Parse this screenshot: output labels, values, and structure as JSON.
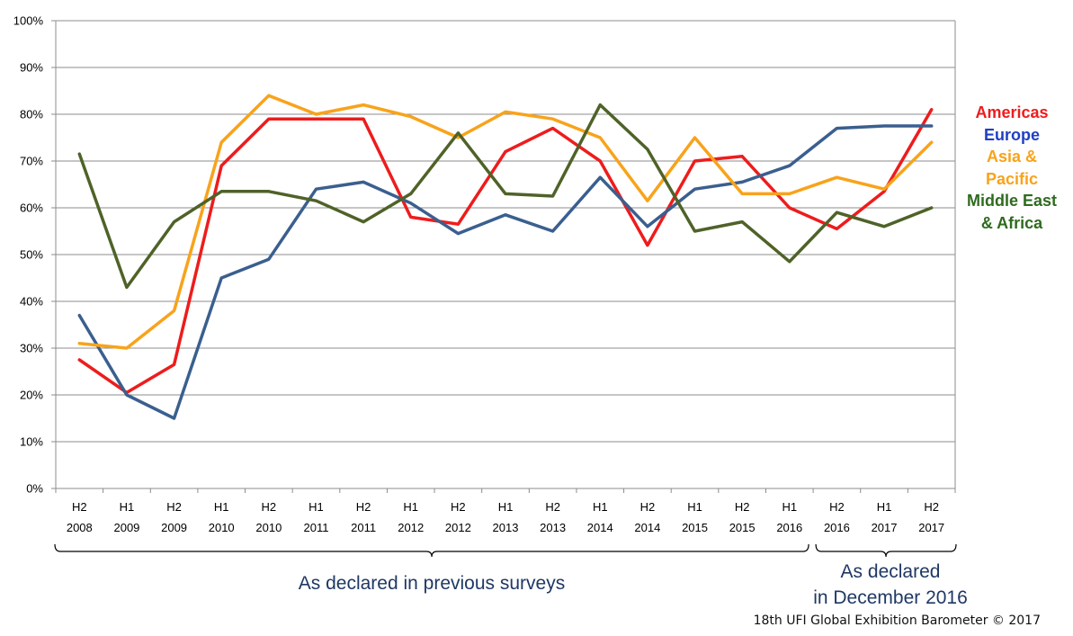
{
  "chart_data": {
    "type": "line",
    "categories": [
      [
        "H2",
        "2008"
      ],
      [
        "H1",
        "2009"
      ],
      [
        "H2",
        "2009"
      ],
      [
        "H1",
        "2010"
      ],
      [
        "H2",
        "2010"
      ],
      [
        "H1",
        "2011"
      ],
      [
        "H2",
        "2011"
      ],
      [
        "H1",
        "2012"
      ],
      [
        "H2",
        "2012"
      ],
      [
        "H1",
        "2013"
      ],
      [
        "H2",
        "2013"
      ],
      [
        "H1",
        "2014"
      ],
      [
        "H2",
        "2014"
      ],
      [
        "H1",
        "2015"
      ],
      [
        "H2",
        "2015"
      ],
      [
        "H1",
        "2016"
      ],
      [
        "H2",
        "2016"
      ],
      [
        "H1",
        "2017"
      ],
      [
        "H2",
        "2017"
      ]
    ],
    "ylim": [
      0,
      100
    ],
    "yticks": [
      "0%",
      "10%",
      "20%",
      "30%",
      "40%",
      "50%",
      "60%",
      "70%",
      "80%",
      "90%",
      "100%"
    ],
    "grid": true,
    "legend_position": "right",
    "series": [
      {
        "name": "Americas",
        "color": "#ee1c1c",
        "values": [
          27.5,
          20.5,
          26.5,
          69,
          79,
          79,
          79,
          58,
          56.5,
          72,
          77,
          70,
          52,
          70,
          71,
          60,
          55.5,
          63.5,
          81
        ]
      },
      {
        "name": "Europe",
        "color": "#3a5f8f",
        "values": [
          37,
          20,
          15,
          45,
          49,
          64,
          65.5,
          61,
          54.5,
          58.5,
          55,
          66.5,
          56,
          64,
          65.5,
          69,
          77,
          77.5,
          77.5
        ]
      },
      {
        "name": "Asia & Pacific",
        "color": "#f8a31b",
        "values": [
          31,
          30,
          38,
          74,
          84,
          80,
          82,
          79.5,
          75,
          80.5,
          79,
          75,
          61.5,
          75,
          63,
          63,
          66.5,
          64,
          74
        ]
      },
      {
        "name": "Middle East & Africa",
        "color": "#4f6228",
        "values": [
          71.5,
          43,
          57,
          63.5,
          63.5,
          61.5,
          57,
          63,
          76,
          63,
          62.5,
          82,
          72.5,
          55,
          57,
          48.5,
          59,
          56,
          60
        ]
      }
    ],
    "groups": [
      {
        "label": "As declared in previous surveys",
        "range": [
          0,
          15
        ]
      },
      {
        "label": "As declared\nin December 2016",
        "range": [
          16,
          18
        ]
      }
    ]
  },
  "legend": [
    {
      "label": "Americas",
      "color": "#ee1c1c"
    },
    {
      "label": "Europe",
      "color": "#1f3fc4"
    },
    {
      "label": "Asia &\nPacific",
      "color": "#f8a31b"
    },
    {
      "label": "Middle East\n& Africa",
      "color": "#2f6b1f"
    }
  ],
  "footer": "18th UFI Global Exhibition Barometer  © 2017"
}
